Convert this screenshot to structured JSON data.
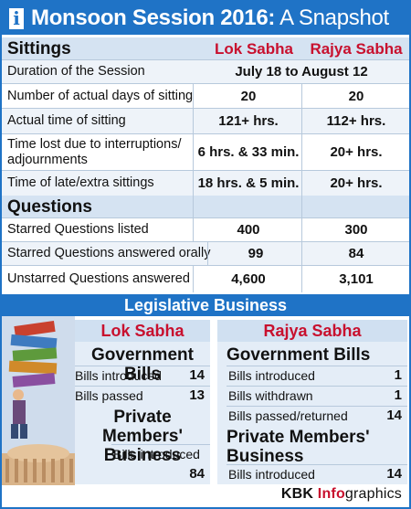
{
  "title": {
    "bold": "Monsoon Session 2016:",
    "rest": " A Snapshot",
    "badge": "i"
  },
  "sittings": {
    "heading": "Sittings",
    "col_ls": "Lok Sabha",
    "col_rs": "Rajya Sabha",
    "rows": [
      {
        "label": "Duration of the Session",
        "span": "July 18 to August 12"
      },
      {
        "label": "Number of actual days of sitting",
        "ls": "20",
        "rs": "20"
      },
      {
        "label": "Actual time of sitting",
        "ls": "121+ hrs.",
        "rs": "112+ hrs."
      },
      {
        "label": "Time lost due to interruptions/ adjournments",
        "ls": "6 hrs. & 33 min.",
        "rs": "20+ hrs."
      },
      {
        "label": "Time of late/extra sittings",
        "ls": "18 hrs. & 5 min.",
        "rs": "20+ hrs."
      }
    ]
  },
  "questions": {
    "heading": "Questions",
    "rows": [
      {
        "label": "Starred Questions listed",
        "ls": "400",
        "rs": "300"
      },
      {
        "label": "Starred Questions answered orally",
        "ls": "99",
        "rs": "84"
      },
      {
        "label": "Unstarred Questions answered",
        "ls": "4,600",
        "rs": "3,101"
      }
    ]
  },
  "legislative": {
    "heading": "Legislative Business",
    "lok": {
      "title": "Lok Sabha",
      "gov_title": "Government Bills",
      "gov": [
        {
          "label": "Bills introduced",
          "value": "14"
        },
        {
          "label": "Bills passed",
          "value": "13"
        }
      ],
      "pmb_title": "Private Members' Business",
      "pmb": [
        {
          "label": "Bills introduced",
          "value": "84"
        }
      ]
    },
    "rajya": {
      "title": "Rajya Sabha",
      "gov_title": "Government Bills",
      "gov": [
        {
          "label": "Bills introduced",
          "value": "1"
        },
        {
          "label": "Bills withdrawn",
          "value": "1"
        },
        {
          "label": "Bills passed/returned",
          "value": "14"
        }
      ],
      "pmb_title": "Private Members' Business",
      "pmb": [
        {
          "label": "Bills introduced",
          "value": "14"
        }
      ]
    }
  },
  "footer": {
    "brand": "KBK ",
    "info": "Info",
    "rest": "graphics"
  },
  "colors": {
    "blue": "#1f73c6",
    "red": "#c8102e",
    "light_blue": "#d5e3f2"
  }
}
